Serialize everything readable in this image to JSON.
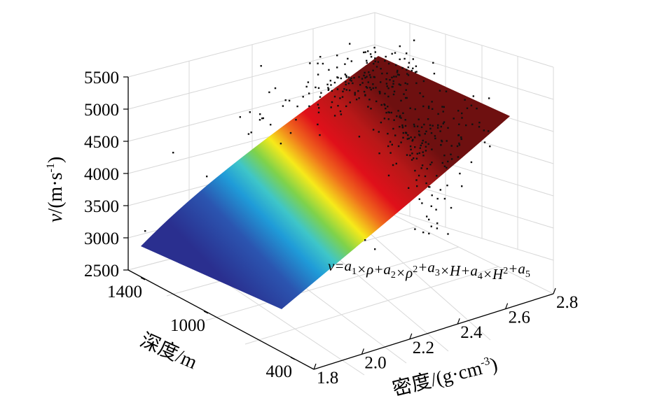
{
  "chart_data": {
    "type": "surface",
    "title": "",
    "zlabel_parts": {
      "var": "v",
      "unit": "/(m·s",
      "exp": "-1",
      "close": ")"
    },
    "xlabel_parts": {
      "name": "密度/(g·cm",
      "exp": "-3",
      "close": ")"
    },
    "ylabel": "深度/m",
    "z_ticks": [
      "5500",
      "5000",
      "4500",
      "4000",
      "3500",
      "3000",
      "2500"
    ],
    "density_ticks": [
      "1.8",
      "2.0",
      "2.2",
      "2.4",
      "2.6",
      "2.8"
    ],
    "depth_ticks": [
      "1400",
      "1000",
      "400"
    ],
    "zlim": [
      2500,
      5500
    ],
    "density_range": [
      1.8,
      2.8
    ],
    "depth_range": [
      400,
      1400
    ],
    "equation": {
      "parts": [
        {
          "t": "v",
          "k": "n"
        },
        {
          "t": "=a",
          "k": "n"
        },
        {
          "t": "1",
          "k": "sub"
        },
        {
          "t": "×ρ+a",
          "k": "n"
        },
        {
          "t": "2",
          "k": "sub"
        },
        {
          "t": "×ρ",
          "k": "n"
        },
        {
          "t": "2",
          "k": "sup"
        },
        {
          "t": "+a",
          "k": "n"
        },
        {
          "t": "3",
          "k": "sub"
        },
        {
          "t": "×H+a",
          "k": "n"
        },
        {
          "t": "4",
          "k": "sub"
        },
        {
          "t": "×H",
          "k": "n"
        },
        {
          "t": "2",
          "k": "sup"
        },
        {
          "t": "+a",
          "k": "n"
        },
        {
          "t": "5",
          "k": "sub"
        }
      ]
    },
    "surface_colormap": [
      "#2a2f8f",
      "#1f9bd8",
      "#7fd24a",
      "#f6ea1a",
      "#f06a1c",
      "#e0101a",
      "#9e1a1a",
      "#6e1010"
    ],
    "scatter_color": "#111111",
    "grid": true
  }
}
